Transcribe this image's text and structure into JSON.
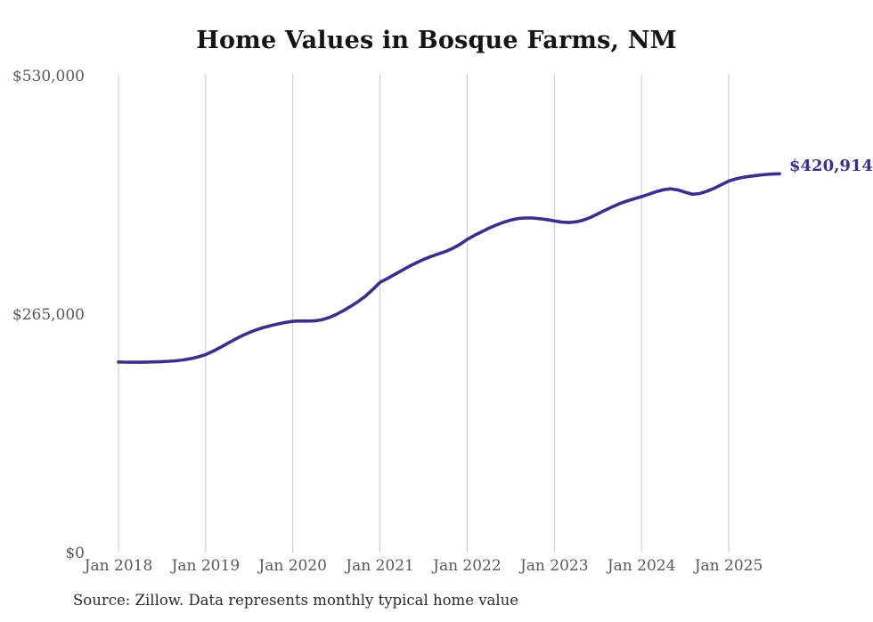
{
  "title": "Home Values in Bosque Farms, NM",
  "end_label": "$420,914",
  "source": "Source: Zillow. Data represents monthly typical home value",
  "colors": {
    "line": "#39308e",
    "grid": "#c9c9c9",
    "axis_text": "#58595b",
    "title_text": "#151515",
    "end_label_text": "#39308e",
    "source_text": "#2b2b2b",
    "background": "#ffffff"
  },
  "chart_data": {
    "type": "line",
    "title": "Home Values in Bosque Farms, NM",
    "xlabel": "",
    "ylabel": "",
    "x_start": "2018-01",
    "x_end": "2025-08",
    "x_tick_labels": [
      "Jan 2018",
      "Jan 2019",
      "Jan 2020",
      "Jan 2021",
      "Jan 2022",
      "Jan 2023",
      "Jan 2024",
      "Jan 2025"
    ],
    "y_tick_labels": [
      "$0",
      "$265,000",
      "$530,000"
    ],
    "y_ticks": [
      0,
      265000,
      530000
    ],
    "ylim": [
      0,
      530000
    ],
    "grid": "vertical-only",
    "legend": "none",
    "annotation": {
      "text": "$420,914",
      "value": 420914,
      "position": "line-end"
    },
    "series": [
      {
        "name": "Monthly typical home value",
        "final_value": 420914,
        "values": [
          211800,
          211600,
          211500,
          211500,
          211700,
          211900,
          212200,
          212600,
          213200,
          214200,
          215600,
          217500,
          220000,
          223700,
          227900,
          232400,
          236800,
          240900,
          244500,
          247600,
          250200,
          252300,
          254100,
          255800,
          257000,
          257400,
          257300,
          257500,
          258700,
          261200,
          264700,
          269000,
          273800,
          279000,
          285000,
          292300,
          300300,
          304500,
          309000,
          313500,
          318000,
          322000,
          325800,
          329000,
          331800,
          334500,
          338000,
          342500,
          348000,
          352500,
          356500,
          360500,
          364000,
          367000,
          369500,
          371200,
          371800,
          371800,
          371000,
          370000,
          368600,
          367300,
          366800,
          367500,
          369500,
          372500,
          376500,
          380500,
          384300,
          387800,
          390700,
          393200,
          395500,
          398200,
          401000,
          403200,
          404200,
          403000,
          400500,
          398200,
          399000,
          401500,
          404800,
          408800,
          412800,
          415300,
          417000,
          418200,
          419200,
          420100,
          420700,
          420914
        ]
      }
    ]
  }
}
